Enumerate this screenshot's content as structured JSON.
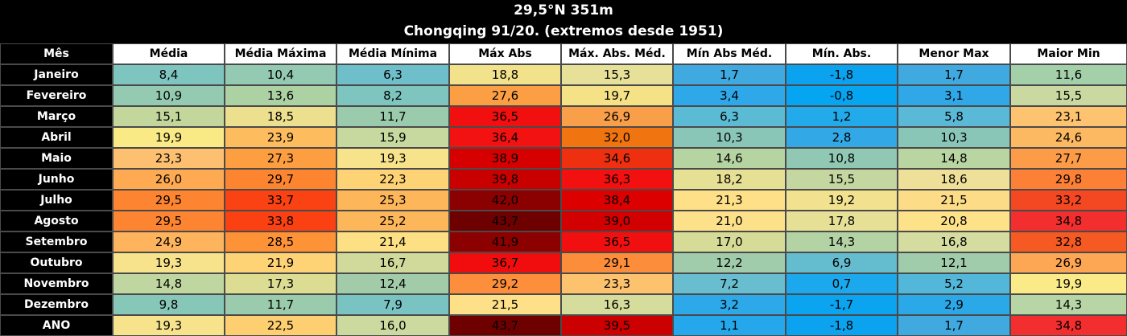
{
  "title_line1": "29,5°N 351m",
  "title_line2": "Chongqing 91/20. (extremos desde 1951)",
  "columns": [
    "Mês",
    "Média",
    "Média Máxima",
    "Média Mínima",
    "Máx Abs",
    "Máx. Abs. Méd.",
    "Mín Abs Méd.",
    "Mín. Abs.",
    "Menor Max",
    "Maior Min"
  ],
  "rows": [
    {
      "label": "Janeiro",
      "values": [
        "8,4",
        "10,4",
        "6,3",
        "18,8",
        "15,3",
        "1,7",
        "-1,8",
        "1,7",
        "11,6"
      ],
      "colors": [
        "#7ec5c0",
        "#93cab1",
        "#6ebfca",
        "#f2e28c",
        "#e6e098",
        "#3fa9e0",
        "#0ba3f0",
        "#3fa9e0",
        "#a3cfa9"
      ]
    },
    {
      "label": "Fevereiro",
      "values": [
        "10,9",
        "13,6",
        "8,2",
        "27,6",
        "19,7",
        "3,4",
        "-0,8",
        "3,1",
        "15,5"
      ],
      "colors": [
        "#93cab1",
        "#acd1a3",
        "#7ec5c0",
        "#fb9e44",
        "#f5e286",
        "#2ea8e8",
        "#05a5f2",
        "#30a8e7",
        "#cad9a2"
      ]
    },
    {
      "label": "Março",
      "values": [
        "15,1",
        "18,5",
        "11,7",
        "36,5",
        "26,9",
        "6,3",
        "1,2",
        "5,8",
        "23,1"
      ],
      "colors": [
        "#c3d79d",
        "#ecdf8e",
        "#9acbad",
        "#f20f0f",
        "#f99f4a",
        "#5cbbd4",
        "#22aaea",
        "#5ab9d6",
        "#fdc370"
      ]
    },
    {
      "label": "Abril",
      "values": [
        "19,9",
        "23,9",
        "15,9",
        "36,4",
        "32,0",
        "10,3",
        "2,8",
        "10,3",
        "24,6"
      ],
      "colors": [
        "#faea86",
        "#fdbd5e",
        "#c7d99f",
        "#f31212",
        "#f07510",
        "#8ac6b7",
        "#33a8e6",
        "#8ac6b7",
        "#fdb862"
      ]
    },
    {
      "label": "Maio",
      "values": [
        "23,3",
        "27,3",
        "19,3",
        "38,9",
        "34,6",
        "14,6",
        "10,8",
        "14,8",
        "27,7"
      ],
      "colors": [
        "#fdc070",
        "#fd9e40",
        "#f6e38b",
        "#d60000",
        "#ee3010",
        "#b6d3a2",
        "#90c8b4",
        "#b9d5a2",
        "#fd9c48"
      ]
    },
    {
      "label": "Junho",
      "values": [
        "26,0",
        "29,7",
        "22,3",
        "39,8",
        "36,3",
        "18,2",
        "15,5",
        "18,6",
        "29,8"
      ],
      "colors": [
        "#fdaa52",
        "#fd8530",
        "#fdd375",
        "#c80000",
        "#f31010",
        "#e6e094",
        "#c5d7a1",
        "#eee098",
        "#fc8035"
      ]
    },
    {
      "label": "Julho",
      "values": [
        "29,5",
        "33,7",
        "25,3",
        "42,0",
        "38,4",
        "21,3",
        "19,2",
        "21,5",
        "33,2"
      ],
      "colors": [
        "#fd8430",
        "#fb4213",
        "#fdb65a",
        "#8b0000",
        "#dc0000",
        "#fde088",
        "#f2e290",
        "#fddc88",
        "#f44823"
      ]
    },
    {
      "label": "Agosto",
      "values": [
        "29,5",
        "33,8",
        "25,2",
        "43,7",
        "39,0",
        "21,0",
        "17,8",
        "20,8",
        "34,8"
      ],
      "colors": [
        "#fd8430",
        "#fb4012",
        "#fdb75b",
        "#6f0000",
        "#d20000",
        "#fde18a",
        "#e6e096",
        "#fde289",
        "#f32e2e"
      ]
    },
    {
      "label": "Setembro",
      "values": [
        "24,9",
        "28,5",
        "21,4",
        "41,9",
        "36,5",
        "17,0",
        "14,3",
        "16,8",
        "32,8"
      ],
      "colors": [
        "#fdb45c",
        "#fd9236",
        "#fde084",
        "#8d0000",
        "#f20f0f",
        "#d6dc98",
        "#b4d3a4",
        "#d4dca0",
        "#f55a22"
      ]
    },
    {
      "label": "Outubro",
      "values": [
        "19,3",
        "21,9",
        "16,7",
        "36,7",
        "29,1",
        "12,2",
        "6,9",
        "12,1",
        "26,9"
      ],
      "colors": [
        "#f6e38b",
        "#fdd376",
        "#d2da9b",
        "#f10d0d",
        "#fc8d3b",
        "#a0ccab",
        "#64bccf",
        "#a1ccab",
        "#fda654"
      ]
    },
    {
      "label": "Novembro",
      "values": [
        "14,8",
        "17,3",
        "12,4",
        "29,2",
        "23,3",
        "7,2",
        "0,7",
        "5,2",
        "19,9"
      ],
      "colors": [
        "#c0d6a0",
        "#dcdd93",
        "#a2cca9",
        "#fc8e3c",
        "#fdc26e",
        "#68bdce",
        "#1ba8ed",
        "#52b7d8",
        "#faea88"
      ]
    },
    {
      "label": "Dezembro",
      "values": [
        "9,8",
        "11,7",
        "7,9",
        "21,5",
        "16,3",
        "3,2",
        "-1,7",
        "2,9",
        "14,3"
      ],
      "colors": [
        "#87c7b8",
        "#9acbad",
        "#7ac3c3",
        "#fde087",
        "#d6dc9c",
        "#2da8e8",
        "#0aa4f0",
        "#2ba8e8",
        "#b7d5a5"
      ]
    },
    {
      "label": "ANO",
      "values": [
        "19,3",
        "22,5",
        "16,0",
        "43,7",
        "39,5",
        "1,1",
        "-1,8",
        "1,7",
        "34,8"
      ],
      "colors": [
        "#f6e38b",
        "#fdcf70",
        "#ccd99f",
        "#6f0000",
        "#cc0000",
        "#25a8eb",
        "#0ba3f0",
        "#3fa9e0",
        "#f32e2e"
      ]
    }
  ]
}
